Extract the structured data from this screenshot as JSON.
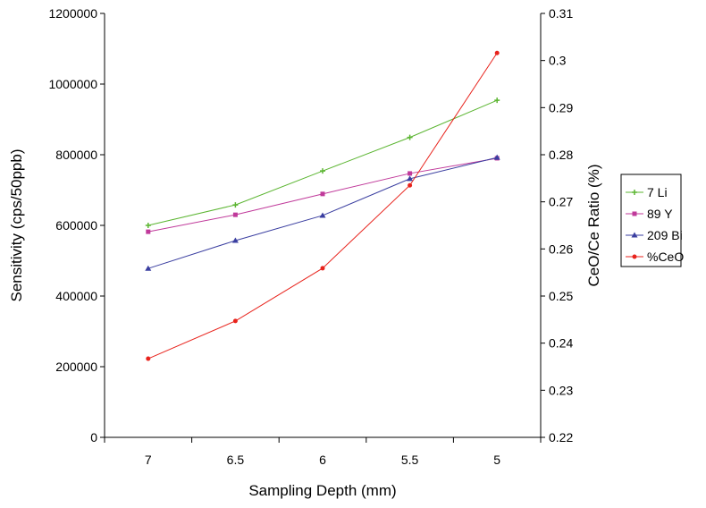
{
  "chart_data": {
    "type": "line",
    "title": "",
    "xlabel": "Sampling Depth (mm)",
    "ylabel": "Sensitivity (cps/50ppb)",
    "y2label": "CeO/Ce Ratio (%)",
    "categories": [
      "7",
      "6.5",
      "6",
      "5.5",
      "5"
    ],
    "ylim": [
      0,
      1200000
    ],
    "yticks": [
      0,
      200000,
      400000,
      600000,
      800000,
      1000000,
      1200000
    ],
    "y2lim": [
      0.22,
      0.31
    ],
    "y2ticks": [
      0.22,
      0.23,
      0.24,
      0.25,
      0.26,
      0.27,
      0.28,
      0.29,
      0.3,
      0.31
    ],
    "grid": false,
    "legend": "right",
    "series": [
      {
        "name": "7 Li",
        "axis": "left",
        "color": "#5bb531",
        "marker": "plus",
        "values": [
          600000,
          658000,
          754000,
          849000,
          954000
        ]
      },
      {
        "name": "89 Y",
        "axis": "left",
        "color": "#c0399a",
        "marker": "square",
        "values": [
          582000,
          630000,
          689000,
          747000,
          790000
        ]
      },
      {
        "name": "209 Bi",
        "axis": "left",
        "color": "#3a3ea0",
        "marker": "triangle",
        "values": [
          478000,
          557000,
          628000,
          732000,
          792000
        ]
      },
      {
        "name": "%CeO",
        "axis": "right",
        "color": "#e8231c",
        "marker": "dot",
        "values": [
          0.2367,
          0.2447,
          0.2559,
          0.2735,
          0.3016
        ]
      }
    ]
  }
}
